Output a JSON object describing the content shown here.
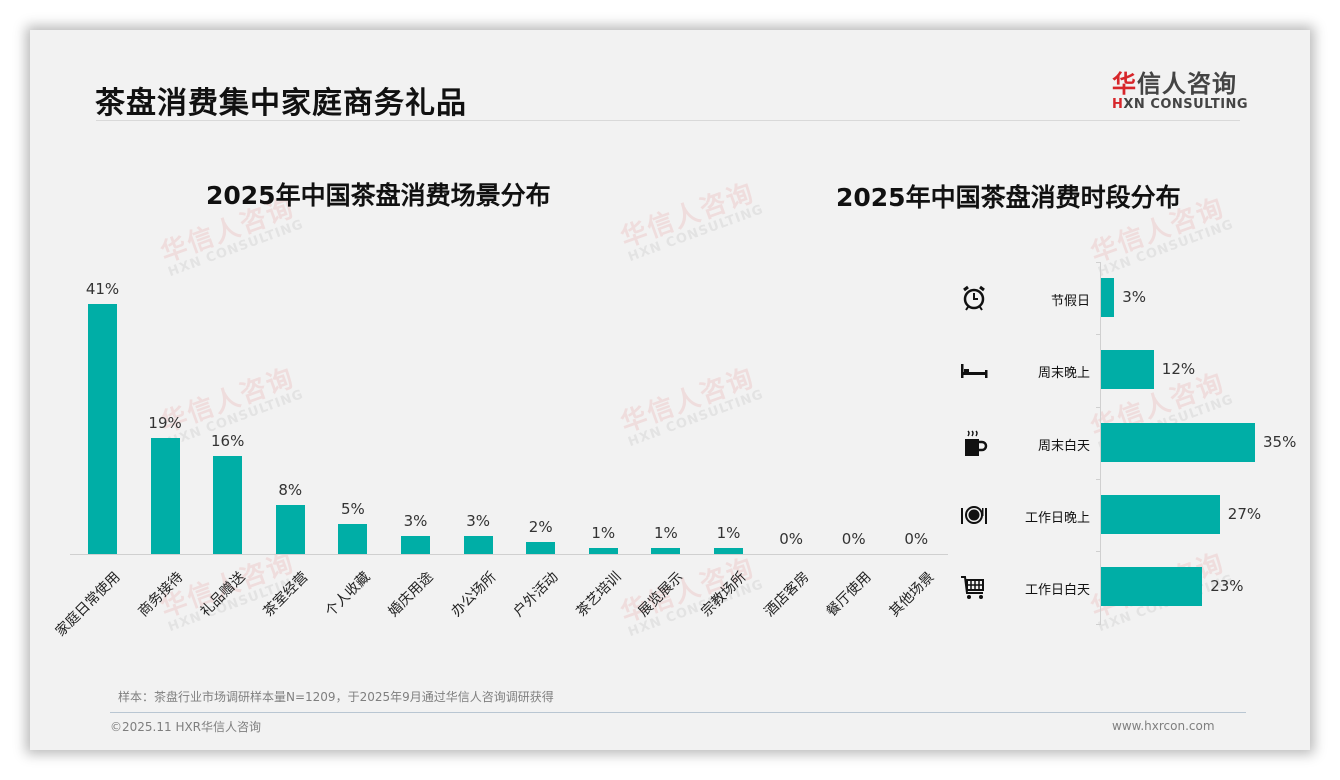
{
  "page": {
    "title": "茶盘消费集中家庭商务礼品",
    "logo": {
      "cn_red": "华",
      "cn_rest": "信人咨询",
      "en_red": "H",
      "en_rest": "XN CONSULTING"
    },
    "watermark": {
      "cn": "华信人咨询",
      "en": "HXN CONSULTING"
    }
  },
  "footer": {
    "note": "样本：茶盘行业市场调研样本量N=1209，于2025年9月通过华信人咨询调研获得",
    "copyright": "©2025.11 HXR华信人咨询",
    "website": "www.hxrcon.com"
  },
  "colors": {
    "bar": "#00aea6",
    "accent_red": "#d7262b",
    "background": "#f2f2f2"
  },
  "chart_data": [
    {
      "type": "bar",
      "title": "2025年中国茶盘消费场景分布",
      "categories": [
        "家庭日常使用",
        "商务接待",
        "礼品赠送",
        "茶室经营",
        "个人收藏",
        "婚庆用途",
        "办公场所",
        "户外活动",
        "茶艺培训",
        "展览展示",
        "宗教场所",
        "酒店客房",
        "餐厅使用",
        "其他场景"
      ],
      "values": [
        41,
        19,
        16,
        8,
        5,
        3,
        3,
        2,
        1,
        1,
        1,
        0,
        0,
        0
      ],
      "labels": [
        "41%",
        "19%",
        "16%",
        "8%",
        "5%",
        "3%",
        "3%",
        "2%",
        "1%",
        "1%",
        "1%",
        "0%",
        "0%",
        "0%"
      ],
      "xlabel": "",
      "ylabel": "",
      "ylim": [
        0,
        45
      ],
      "grid": false,
      "legend": "none",
      "unit": "%"
    },
    {
      "type": "bar",
      "orientation": "horizontal",
      "title": "2025年中国茶盘消费时段分布",
      "categories": [
        "节假日",
        "周末晚上",
        "周末白天",
        "工作日晚上",
        "工作日白天"
      ],
      "icons": [
        "alarm-clock-icon",
        "bed-icon",
        "coffee-cup-icon",
        "dining-plate-icon",
        "shopping-cart-icon"
      ],
      "values": [
        3,
        12,
        35,
        27,
        23
      ],
      "labels": [
        "3%",
        "12%",
        "35%",
        "27%",
        "23%"
      ],
      "xlim": [
        0,
        40
      ],
      "grid": false,
      "legend": "none",
      "unit": "%"
    }
  ]
}
